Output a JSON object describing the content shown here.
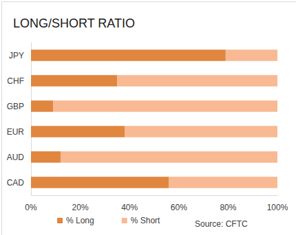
{
  "chart_data": {
    "type": "bar",
    "title": "LONG/SHORT RATIO",
    "orientation": "horizontal",
    "stacked": true,
    "grid": false,
    "legend": "bottom",
    "annotation": "Source: CFTC",
    "categories": [
      "JPY",
      "CHF",
      "GBP",
      "EUR",
      "AUD",
      "CAD"
    ],
    "series": [
      {
        "name": "% Long",
        "color": "#e0863f",
        "values": [
          79,
          35,
          9,
          38,
          12,
          56
        ]
      },
      {
        "name": "% Short",
        "color": "#f8b993",
        "values": [
          21,
          65,
          91,
          62,
          88,
          44
        ]
      }
    ],
    "xlim": [
      0,
      100
    ],
    "xticks": [
      {
        "value": 0,
        "label": "0%"
      },
      {
        "value": 20,
        "label": "20%"
      },
      {
        "value": 40,
        "label": "40%"
      },
      {
        "value": 60,
        "label": "60%"
      },
      {
        "value": 80,
        "label": "80%"
      },
      {
        "value": 100,
        "label": "100%"
      }
    ]
  }
}
